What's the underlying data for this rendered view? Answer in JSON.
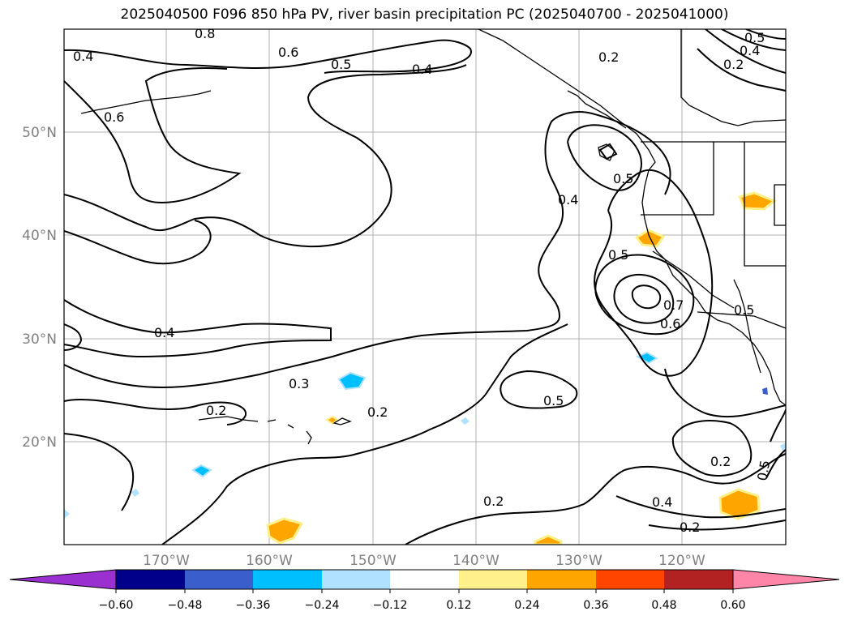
{
  "title": "2025040500 F096 850 hPa PV, river basin precipitation PC (2025040700 - 2025041000)",
  "map": {
    "lat_labels": [
      "50°N",
      "40°N",
      "30°N",
      "20°N"
    ],
    "lon_labels": [
      "170°W",
      "160°W",
      "150°W",
      "140°W",
      "130°W",
      "120°W"
    ],
    "contour_labels": [
      "0.8",
      "0.6",
      "0.5",
      "0.4",
      "0.2",
      "0.5",
      "0.4",
      "0.2",
      "0.6",
      "0.4",
      "0.5",
      "0.4",
      "0.5",
      "0.7",
      "0.6",
      "0.5",
      "0.4",
      "0.3",
      "0.2",
      "0.2",
      "0.5",
      "0.2",
      "0.4",
      "0.2",
      "0.5",
      "0.2"
    ]
  },
  "colorbar": {
    "ticks": [
      "−0.60",
      "−0.48",
      "−0.36",
      "−0.24",
      "−0.12",
      "0.12",
      "0.24",
      "0.36",
      "0.48",
      "0.60"
    ],
    "colors": [
      "#9b30d0",
      "#00008b",
      "#3a5fcd",
      "#00bfff",
      "#b0e2ff",
      "#ffffff",
      "#fff08c",
      "#ffa500",
      "#ff4500",
      "#b22222",
      "#ff85a8"
    ]
  }
}
